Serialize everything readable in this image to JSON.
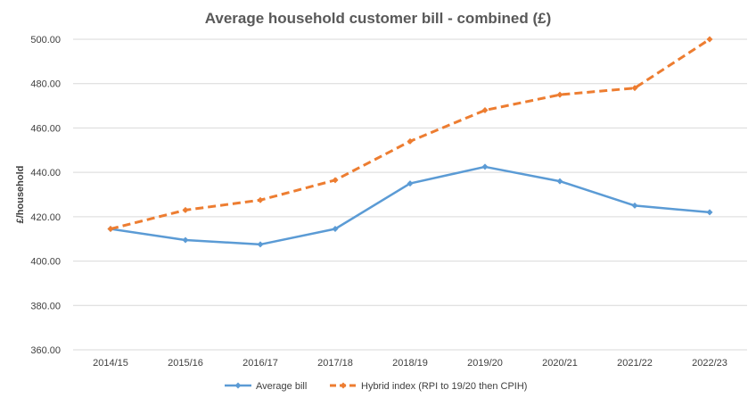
{
  "chart_data": {
    "type": "line",
    "title": "Average household customer bill - combined (£)",
    "xlabel": "",
    "ylabel": "£/household",
    "categories": [
      "2014/15",
      "2015/16",
      "2016/17",
      "2017/18",
      "2018/19",
      "2019/20",
      "2020/21",
      "2021/22",
      "2022/23"
    ],
    "ylim": [
      360,
      500
    ],
    "yticks": [
      "360.00",
      "380.00",
      "400.00",
      "420.00",
      "440.00",
      "460.00",
      "480.00",
      "500.00"
    ],
    "grid": true,
    "legend_position": "bottom",
    "series": [
      {
        "name": "Average bill",
        "color": "#5b9bd5",
        "style": "solid",
        "values": [
          414.5,
          409.5,
          407.5,
          414.5,
          435.0,
          442.5,
          436.0,
          425.0,
          422.0
        ]
      },
      {
        "name": "Hybrid index (RPI to 19/20 then CPIH)",
        "color": "#ed7d31",
        "style": "dashed",
        "values": [
          414.5,
          423.0,
          427.5,
          436.5,
          454.0,
          468.0,
          475.0,
          478.0,
          500.0
        ]
      }
    ]
  }
}
